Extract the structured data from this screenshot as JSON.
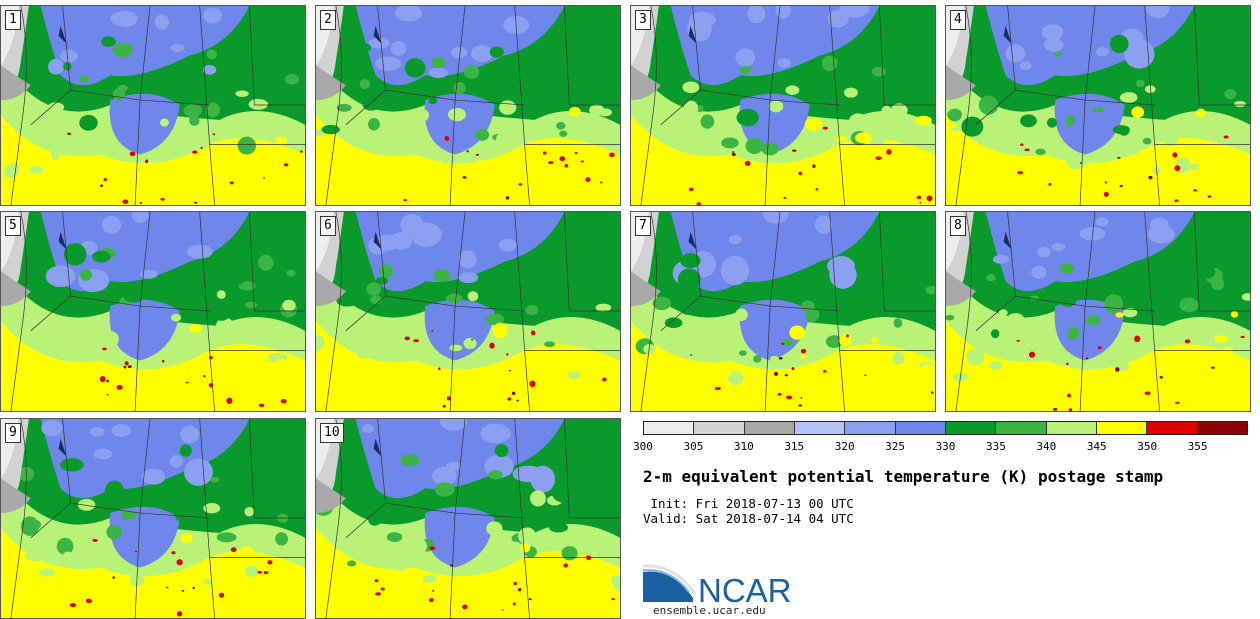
{
  "panels": [
    {
      "label": "1"
    },
    {
      "label": "2"
    },
    {
      "label": "3"
    },
    {
      "label": "4"
    },
    {
      "label": "5"
    },
    {
      "label": "6"
    },
    {
      "label": "7"
    },
    {
      "label": "8"
    },
    {
      "label": "9"
    },
    {
      "label": "10"
    }
  ],
  "colorbar": {
    "colors": [
      "#ededed",
      "#d2d2d2",
      "#a9a9a9",
      "#b3c4f7",
      "#8ba0f0",
      "#6f86ea",
      "#0a9a2c",
      "#3cb444",
      "#b8f277",
      "#ffff00",
      "#e00000",
      "#8b0000"
    ],
    "ticks": [
      "300",
      "305",
      "310",
      "315",
      "320",
      "325",
      "330",
      "335",
      "340",
      "345",
      "350",
      "355"
    ]
  },
  "title": "2-m equivalent potential temperature (K) postage stamp",
  "init": " Init: Fri 2018-07-13 00 UTC",
  "valid": "Valid: Sat 2018-07-14 04 UTC",
  "logo": {
    "text": "NCAR",
    "url": "ensemble.ucar.edu",
    "color": "#1a5fa0"
  }
}
